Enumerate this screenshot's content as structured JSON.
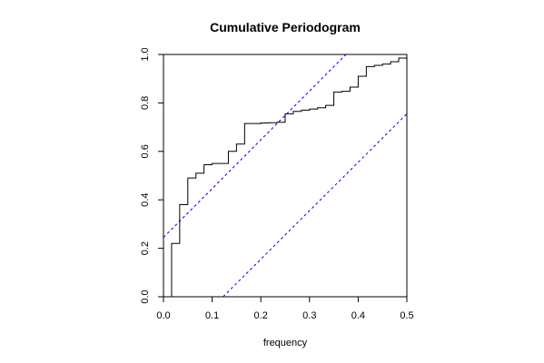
{
  "chart_data": {
    "type": "line",
    "title": "Cumulative Periodogram",
    "xlabel": "frequency",
    "ylabel": "",
    "xlim": [
      0,
      0.5
    ],
    "ylim": [
      0,
      1
    ],
    "xticks": [
      {
        "value": 0.0,
        "label": "0.0"
      },
      {
        "value": 0.1,
        "label": "0.1"
      },
      {
        "value": 0.2,
        "label": "0.2"
      },
      {
        "value": 0.3,
        "label": "0.3"
      },
      {
        "value": 0.4,
        "label": "0.4"
      },
      {
        "value": 0.5,
        "label": "0.5"
      }
    ],
    "yticks": [
      {
        "value": 0.0,
        "label": "0.0"
      },
      {
        "value": 0.2,
        "label": "0.2"
      },
      {
        "value": 0.4,
        "label": "0.4"
      },
      {
        "value": 0.6,
        "label": "0.6"
      },
      {
        "value": 0.8,
        "label": "0.8"
      },
      {
        "value": 1.0,
        "label": "1.0"
      }
    ],
    "grid": false,
    "legend": "none",
    "series": [
      {
        "style": "step",
        "color": "#000000",
        "x": [
          0.0,
          0.0167,
          0.0333,
          0.05,
          0.0667,
          0.0833,
          0.1,
          0.1167,
          0.1333,
          0.15,
          0.1667,
          0.1833,
          0.2,
          0.2167,
          0.2333,
          0.25,
          0.2667,
          0.2833,
          0.3,
          0.3167,
          0.3333,
          0.35,
          0.3667,
          0.3833,
          0.4,
          0.4167,
          0.4333,
          0.45,
          0.4667,
          0.4833,
          0.5
        ],
        "y": [
          0.0,
          0.22,
          0.38,
          0.49,
          0.51,
          0.545,
          0.55,
          0.55,
          0.6,
          0.63,
          0.715,
          0.715,
          0.717,
          0.718,
          0.72,
          0.755,
          0.765,
          0.77,
          0.775,
          0.78,
          0.79,
          0.845,
          0.848,
          0.865,
          0.91,
          0.95,
          0.955,
          0.96,
          0.97,
          0.985,
          0.99
        ]
      }
    ],
    "bands": [
      {
        "style": "dashed",
        "color": "#0000ff",
        "x": [
          0.0,
          0.375
        ],
        "y": [
          0.245,
          1.0
        ]
      },
      {
        "style": "dashed",
        "color": "#0000ff",
        "x": [
          0.1225,
          0.5
        ],
        "y": [
          0.0,
          0.755
        ]
      }
    ]
  }
}
